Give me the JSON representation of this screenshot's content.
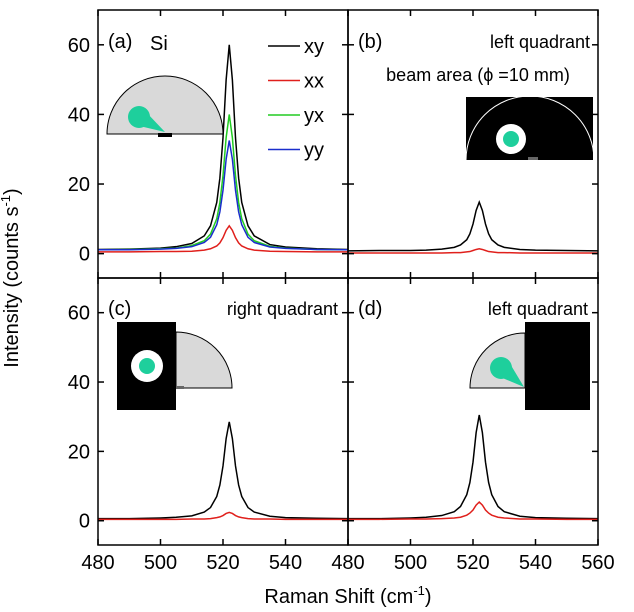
{
  "chart_data": [
    {
      "type": "line",
      "annotations": [
        "(a)",
        "Si"
      ],
      "ylabel": [
        "Intensity (counts s",
        "-1",
        ")"
      ],
      "xlabel": [
        "Raman Shift (cm",
        "-1",
        ")"
      ],
      "x": [
        480,
        490,
        500,
        505,
        510,
        514,
        516,
        518,
        519,
        520,
        521,
        522,
        523,
        524,
        525,
        526,
        528,
        530,
        535,
        540,
        550,
        560
      ],
      "xlim": [
        480,
        560
      ],
      "xticks": [
        480,
        500,
        520,
        540,
        560
      ],
      "ylim": [
        -7,
        70
      ],
      "yticks": [
        0,
        20,
        40,
        60
      ],
      "series": [
        {
          "name": "xy",
          "color": "#000000",
          "values": [
            1.2,
            1.3,
            1.6,
            2.0,
            2.9,
            5.1,
            8.0,
            14.7,
            21.7,
            33.3,
            49.9,
            60,
            49.9,
            33.3,
            21.7,
            14.7,
            8.0,
            5.1,
            2.6,
            1.9,
            1.4,
            1.2
          ]
        },
        {
          "name": "xx",
          "color": "#e0201c",
          "values": [
            0.5,
            0.5,
            0.6,
            0.6,
            0.7,
            1.0,
            1.4,
            2.2,
            3.1,
            4.6,
            6.7,
            8.0,
            6.7,
            4.6,
            3.1,
            2.2,
            1.4,
            1.0,
            0.7,
            0.6,
            0.5,
            0.5
          ]
        },
        {
          "name": "yx",
          "color": "#22cc22",
          "values": [
            1.1,
            1.2,
            1.4,
            1.6,
            2.3,
            3.7,
            5.6,
            10.0,
            14.7,
            22.4,
            33.3,
            40,
            33.3,
            22.4,
            14.7,
            10.0,
            5.6,
            3.7,
            2.1,
            1.6,
            1.2,
            1.1
          ]
        },
        {
          "name": "yy",
          "color": "#1a2ecc",
          "values": [
            1.1,
            1.1,
            1.3,
            1.5,
            2.0,
            3.2,
            4.7,
            8.3,
            12.0,
            18.2,
            27.1,
            32.5,
            27.1,
            18.2,
            12.0,
            8.3,
            4.7,
            3.2,
            1.9,
            1.5,
            1.2,
            1.1
          ]
        }
      ]
    },
    {
      "type": "line",
      "annotations": [
        "(b)",
        "left quadrant",
        "beam area (ϕ =10 mm)"
      ],
      "x": [
        480,
        490,
        500,
        505,
        510,
        514,
        516,
        518,
        519,
        520,
        521,
        522,
        523,
        524,
        525,
        526,
        528,
        530,
        535,
        540,
        550,
        560
      ],
      "xlim": [
        480,
        560
      ],
      "xticks": [
        480,
        500,
        520,
        540,
        560
      ],
      "ylim": [
        -7,
        70
      ],
      "yticks": [
        0,
        20,
        40,
        60
      ],
      "series": [
        {
          "color": "#000000",
          "values": [
            0.8,
            0.9,
            0.9,
            1.0,
            1.3,
            1.8,
            2.5,
            4.0,
            5.7,
            8.5,
            12.4,
            14.8,
            12.4,
            8.5,
            5.7,
            4.0,
            2.5,
            1.8,
            1.2,
            1.0,
            0.9,
            0.8
          ]
        },
        {
          "color": "#e0201c",
          "values": [
            0.2,
            0.2,
            0.2,
            0.2,
            0.2,
            0.3,
            0.3,
            0.5,
            0.6,
            0.9,
            1.2,
            1.4,
            1.2,
            0.9,
            0.6,
            0.5,
            0.3,
            0.3,
            0.2,
            0.2,
            0.2,
            0.2
          ]
        }
      ]
    },
    {
      "type": "line",
      "annotations": [
        "(c)",
        "right quadrant"
      ],
      "x": [
        480,
        490,
        500,
        505,
        510,
        514,
        516,
        518,
        519,
        520,
        521,
        522,
        523,
        524,
        525,
        526,
        528,
        530,
        535,
        540,
        550,
        560
      ],
      "xlim": [
        480,
        560
      ],
      "xticks": [
        480,
        500,
        520,
        540
      ],
      "ylim": [
        -7,
        70
      ],
      "yticks": [
        0,
        20,
        40,
        60
      ],
      "series": [
        {
          "color": "#000000",
          "values": [
            0.6,
            0.6,
            0.8,
            1.0,
            1.4,
            2.5,
            3.8,
            7.0,
            10.3,
            15.8,
            23.7,
            28.5,
            23.7,
            15.8,
            10.3,
            7.0,
            3.8,
            2.5,
            1.3,
            0.9,
            0.7,
            0.6
          ]
        },
        {
          "color": "#e0201c",
          "values": [
            0.4,
            0.4,
            0.4,
            0.4,
            0.5,
            0.5,
            0.6,
            0.9,
            1.1,
            1.5,
            2.1,
            2.4,
            2.1,
            1.5,
            1.1,
            0.9,
            0.6,
            0.5,
            0.5,
            0.4,
            0.4,
            0.4
          ]
        }
      ]
    },
    {
      "type": "line",
      "annotations": [
        "(d)",
        "left quadrant"
      ],
      "x": [
        480,
        490,
        500,
        505,
        510,
        514,
        516,
        518,
        519,
        520,
        521,
        522,
        523,
        524,
        525,
        526,
        528,
        530,
        535,
        540,
        550,
        560
      ],
      "xlim": [
        480,
        560
      ],
      "xticks": [
        480,
        500,
        520,
        540,
        560
      ],
      "ylim": [
        -7,
        70
      ],
      "yticks": [
        0,
        20,
        40,
        60
      ],
      "series": [
        {
          "color": "#000000",
          "values": [
            0.6,
            0.6,
            0.8,
            1.0,
            1.5,
            2.6,
            4.1,
            7.5,
            11.0,
            16.9,
            25.4,
            30.5,
            25.4,
            16.9,
            11.0,
            7.5,
            4.1,
            2.6,
            1.3,
            0.9,
            0.7,
            0.6
          ]
        },
        {
          "color": "#e0201c",
          "values": [
            0.4,
            0.4,
            0.5,
            0.5,
            0.6,
            0.8,
            1.0,
            1.6,
            2.2,
            3.1,
            4.5,
            5.4,
            4.5,
            3.1,
            2.2,
            1.6,
            1.0,
            0.8,
            0.5,
            0.5,
            0.4,
            0.4
          ]
        }
      ]
    }
  ]
}
